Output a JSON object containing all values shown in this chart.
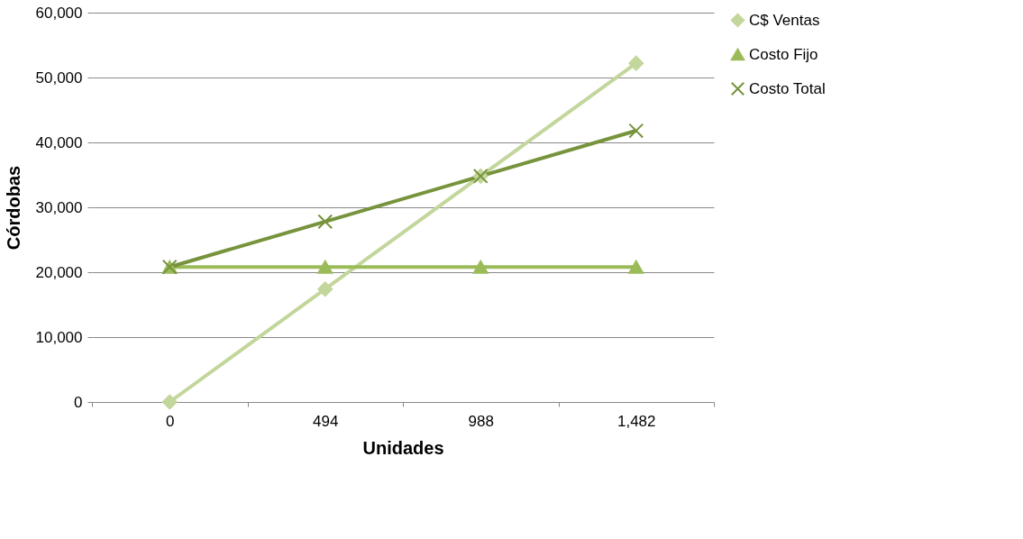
{
  "chart_data": {
    "type": "line",
    "xlabel": "Unidades",
    "ylabel": "Córdobas",
    "categories": [
      "0",
      "494",
      "988",
      "1,482"
    ],
    "series": [
      {
        "name": "C$ Ventas",
        "color": "#c3d69b",
        "marker": "diamond",
        "values": [
          0,
          17400,
          34800,
          52200
        ]
      },
      {
        "name": "Costo Fijo",
        "color": "#9bbb59",
        "marker": "triangle",
        "values": [
          20800,
          20800,
          20800,
          20800
        ]
      },
      {
        "name": "Costo Total",
        "color": "#77933c",
        "marker": "cross",
        "values": [
          20800,
          27800,
          34800,
          41800
        ]
      }
    ],
    "ylim": [
      0,
      60000
    ],
    "yticks": [
      0,
      {
        "value": 10000,
        "label": "10,000"
      },
      {
        "value": 20000,
        "label": "20,000"
      },
      {
        "value": 30000,
        "label": "30,000"
      },
      {
        "value": 40000,
        "label": "40,000"
      },
      {
        "value": 50000,
        "label": "50,000"
      },
      {
        "value": 60000,
        "label": "60,000"
      }
    ],
    "grid": "y",
    "legend": "right",
    "line_style": "solid"
  }
}
